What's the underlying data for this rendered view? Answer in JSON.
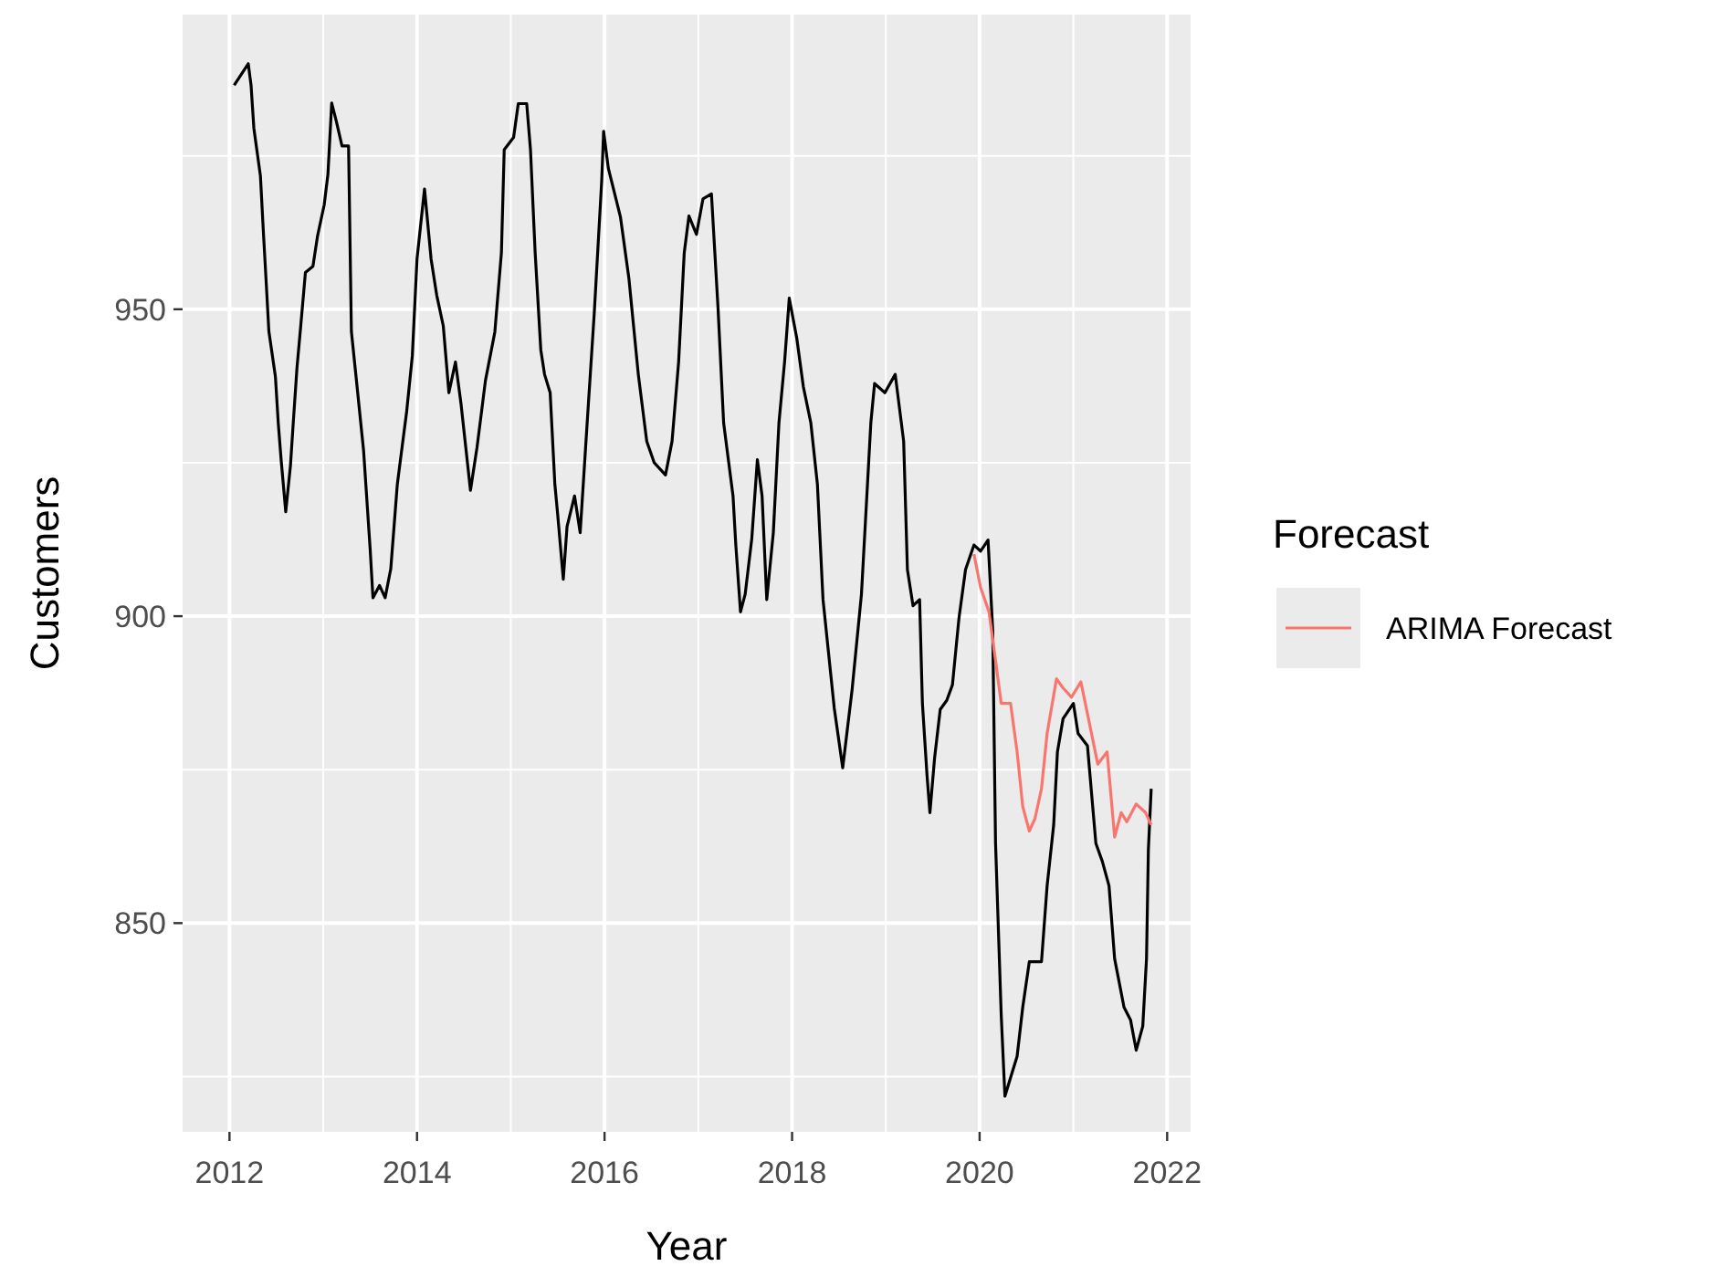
{
  "chart_data": {
    "type": "line",
    "xlabel": "Year",
    "ylabel": "Customers",
    "legend_title": "Forecast",
    "legend": "right",
    "grid": true,
    "xlim": [
      2011.5,
      2022.25
    ],
    "xticks": [
      2012,
      2014,
      2016,
      2018,
      2020,
      2022
    ],
    "ylim": [
      816,
      998
    ],
    "yticks": [
      850,
      900,
      950
    ],
    "series": [
      {
        "color": "#000000",
        "x": [
          2012.05,
          2012.2,
          2012.23,
          2012.26,
          2012.33,
          2012.36,
          2012.39,
          2012.42,
          2012.49,
          2012.52,
          2012.55,
          2012.6,
          2012.65,
          2012.68,
          2012.72,
          2012.76,
          2012.81,
          2012.89,
          2012.94,
          2013.01,
          2013.05,
          2013.09,
          2013.14,
          2013.2,
          2013.27,
          2013.3,
          2013.37,
          2013.43,
          2013.5,
          2013.53,
          2013.6,
          2013.66,
          2013.72,
          2013.79,
          2013.89,
          2013.95,
          2014.0,
          2014.08,
          2014.15,
          2014.21,
          2014.28,
          2014.34,
          2014.41,
          2014.47,
          2014.57,
          2014.64,
          2014.73,
          2014.83,
          2014.9,
          2014.93,
          2015.03,
          2015.08,
          2015.17,
          2015.21,
          2015.26,
          2015.32,
          2015.36,
          2015.42,
          2015.47,
          2015.5,
          2015.56,
          2015.6,
          2015.68,
          2015.74,
          2015.81,
          2015.89,
          2015.97,
          2015.99,
          2016.04,
          2016.17,
          2016.26,
          2016.36,
          2016.45,
          2016.53,
          2016.65,
          2016.72,
          2016.79,
          2016.85,
          2016.9,
          2016.98,
          2017.05,
          2017.14,
          2017.21,
          2017.27,
          2017.37,
          2017.4,
          2017.45,
          2017.5,
          2017.57,
          2017.63,
          2017.68,
          2017.73,
          2017.8,
          2017.86,
          2017.92,
          2017.97,
          2018.05,
          2018.12,
          2018.2,
          2018.27,
          2018.33,
          2018.45,
          2018.54,
          2018.64,
          2018.74,
          2018.84,
          2018.88,
          2018.99,
          2019.1,
          2019.19,
          2019.23,
          2019.29,
          2019.36,
          2019.39,
          2019.44,
          2019.47,
          2019.52,
          2019.58,
          2019.65,
          2019.71,
          2019.78,
          2019.85,
          2019.94,
          2020.01,
          2020.09,
          2020.14,
          2020.17,
          2020.23,
          2020.27,
          2020.33,
          2020.4,
          2020.46,
          2020.53,
          2020.66,
          2020.72,
          2020.79,
          2020.83,
          2020.89,
          2021.0,
          2021.05,
          2021.15,
          2021.24,
          2021.31,
          2021.38,
          2021.44,
          2021.54,
          2021.61,
          2021.67,
          2021.74,
          2021.78,
          2021.8,
          2021.83
        ],
        "values": [
          986.5,
          990,
          986.5,
          979.5,
          971.7,
          963,
          954.8,
          946.4,
          939,
          931.5,
          925.6,
          917,
          924.5,
          931.5,
          940.5,
          947.3,
          956,
          957,
          962,
          967,
          972,
          983.6,
          980.6,
          976.6,
          976.6,
          946.4,
          936,
          927,
          911,
          903,
          905,
          903,
          907.7,
          921.5,
          933.4,
          942.4,
          958.2,
          969.6,
          958.2,
          952.3,
          947.3,
          936.4,
          941.4,
          934.5,
          920.5,
          927.5,
          938.4,
          946.3,
          959.2,
          976,
          978,
          983.5,
          983.5,
          976,
          959.2,
          943.4,
          939.4,
          936.4,
          921.5,
          916.6,
          906,
          914.6,
          919.6,
          913.6,
          930.4,
          949.3,
          971,
          979,
          973,
          965,
          955,
          939.4,
          928.5,
          925,
          923,
          928.5,
          941.4,
          959.2,
          965.2,
          962.2,
          968,
          968.8,
          950.3,
          931.5,
          919.6,
          911.6,
          900.7,
          903.6,
          912.6,
          925.5,
          919.6,
          902.7,
          913.6,
          931.5,
          941.4,
          951.8,
          945.3,
          937.4,
          931.5,
          921.5,
          902.7,
          885,
          875.3,
          888,
          903.6,
          931.5,
          937.9,
          936.4,
          939.4,
          928.5,
          907.6,
          901.7,
          902.7,
          885.8,
          873.9,
          868,
          876.9,
          884.8,
          886.3,
          888.8,
          899.7,
          907.6,
          911.6,
          910.6,
          912.4,
          897.7,
          863,
          835.2,
          821.8,
          824.8,
          828.3,
          836.3,
          843.7,
          843.7,
          856.1,
          866,
          877.9,
          883.3,
          885.8,
          880.9,
          878.9,
          863,
          860,
          856.1,
          844.2,
          836.3,
          834.2,
          829.3,
          833.2,
          844.2,
          862,
          871.9
        ]
      },
      {
        "name": "ARIMA Forecast",
        "color": "#f8766d",
        "x": [
          2019.94,
          2020.01,
          2020.1,
          2020.17,
          2020.23,
          2020.33,
          2020.4,
          2020.46,
          2020.53,
          2020.59,
          2020.66,
          2020.72,
          2020.82,
          2020.89,
          2020.98,
          2021.08,
          2021.18,
          2021.26,
          2021.36,
          2021.44,
          2021.51,
          2021.57,
          2021.67,
          2021.77,
          2021.83
        ],
        "values": [
          910.1,
          904.7,
          900.7,
          892.8,
          885.8,
          885.8,
          877.9,
          869,
          865,
          867,
          871.9,
          880.9,
          889.8,
          888.3,
          886.8,
          889.3,
          881.9,
          875.9,
          877.9,
          864,
          868,
          866.5,
          869.4,
          868,
          866
        ]
      }
    ]
  }
}
